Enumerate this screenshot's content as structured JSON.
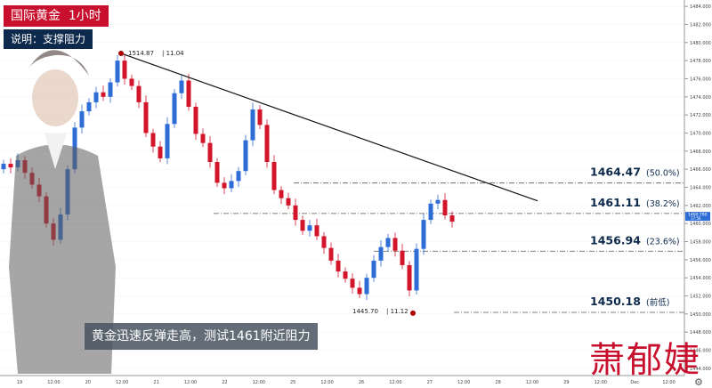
{
  "header": {
    "title": "国际黄金  1小时",
    "subtitle": "说明：支撑阻力"
  },
  "caption": "黄金迅速反弹走高，测试1461附近阻力",
  "watermark": "萧郁婕",
  "colors": {
    "up": "#2f6dd6",
    "down": "#d3152b",
    "title_bg": "#c8102e",
    "subtitle_bg": "#0d2a4c",
    "trendline": "#111111",
    "level_line": "#555555",
    "marker": "#b10000"
  },
  "chart_data": {
    "type": "candlestick",
    "ylim": [
      1443.2,
      1484.7
    ],
    "y_ticks": [
      "1484.000",
      "1482.000",
      "1480.000",
      "1478.000",
      "1476.000",
      "1474.000",
      "1472.000",
      "1470.000",
      "1468.000",
      "1466.000",
      "1464.000",
      "1462.000",
      "1460.000",
      "1458.000",
      "1456.000",
      "1454.000",
      "1452.000",
      "1450.000",
      "1448.000",
      "1446.000",
      "1444.000"
    ],
    "x_ticks": [
      "19",
      "12:00",
      "20",
      "12:00",
      "21",
      "12:00",
      "22",
      "12:00",
      "25",
      "12:00",
      "26",
      "12:00",
      "27",
      "12:00",
      "28",
      "12:00",
      "29",
      "12:00",
      "Dec",
      "12:00"
    ],
    "current_price": "1460.790",
    "current_time": "17:56",
    "levels": [
      {
        "price": 1464.47,
        "value": "1464.47",
        "note": "(50.0%)"
      },
      {
        "price": 1461.11,
        "value": "1461.11",
        "note": "(38.2%)"
      },
      {
        "price": 1456.94,
        "value": "1456.94",
        "note": "(23.6%)"
      },
      {
        "price": 1450.18,
        "value": "1450.18",
        "note": "(前低)"
      }
    ],
    "annotations": [
      {
        "price": 1478.8,
        "x_index": 16.5,
        "text": "1514.87",
        "text2": "11.04"
      },
      {
        "price": 1450.1,
        "x_index": 57.5,
        "text": "1445.70",
        "text2": "11.12"
      }
    ],
    "trendline": {
      "x1_index": 16.5,
      "y1": 1478.8,
      "x2_index": 75,
      "y2": 1462.5
    },
    "closes": [
      1466.6,
      1466.2,
      1467.0,
      1465.6,
      1464.3,
      1463.0,
      1460.0,
      1458.2,
      1461.0,
      1466.0,
      1470.6,
      1472.4,
      1473.4,
      1474.5,
      1474.0,
      1475.6,
      1478.0,
      1476.0,
      1475.2,
      1473.4,
      1470.0,
      1468.5,
      1467.2,
      1471.0,
      1474.4,
      1475.8,
      1472.9,
      1469.9,
      1468.9,
      1466.8,
      1464.5,
      1463.9,
      1464.7,
      1465.8,
      1469.2,
      1472.6,
      1470.9,
      1466.8,
      1463.7,
      1462.8,
      1462.0,
      1460.4,
      1459.2,
      1459.8,
      1458.6,
      1457.3,
      1455.9,
      1454.7,
      1453.9,
      1452.9,
      1452.2,
      1454.0,
      1455.9,
      1457.4,
      1458.4,
      1457.0,
      1455.4,
      1452.6,
      1457.2,
      1460.4,
      1462.2,
      1462.6,
      1460.9,
      1460.2
    ]
  }
}
